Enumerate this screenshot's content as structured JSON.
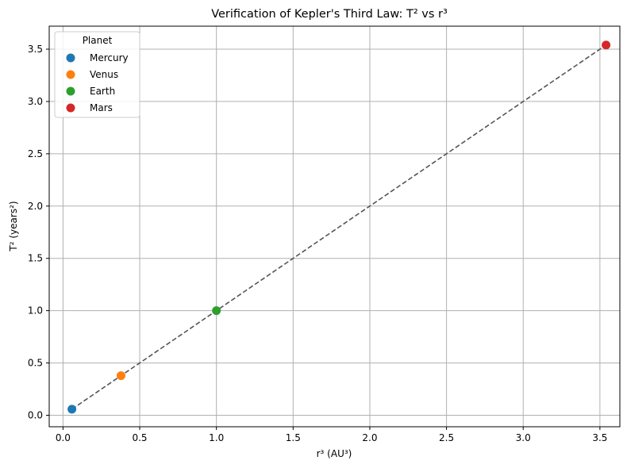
{
  "chart_data": {
    "type": "scatter",
    "title": "Verification of Kepler's Third Law: T² vs r³",
    "xlabel": "r³ (AU³)",
    "ylabel": "T² (years²)",
    "xlim": [
      -0.09,
      3.63
    ],
    "ylim": [
      -0.11,
      3.72
    ],
    "xticks": [
      0.0,
      0.5,
      1.0,
      1.5,
      2.0,
      2.5,
      3.0,
      3.5
    ],
    "xtick_labels": [
      "0.0",
      "0.5",
      "1.0",
      "1.5",
      "2.0",
      "2.5",
      "3.0",
      "3.5"
    ],
    "yticks": [
      0.0,
      0.5,
      1.0,
      1.5,
      2.0,
      2.5,
      3.0,
      3.5
    ],
    "ytick_labels": [
      "0.0",
      "0.5",
      "1.0",
      "1.5",
      "2.0",
      "2.5",
      "3.0",
      "3.5"
    ],
    "grid": true,
    "legend": {
      "title": "Planet",
      "placement": "top-left"
    },
    "series": [
      {
        "name": "Mercury",
        "color": "#1f77b4",
        "x": [
          0.058
        ],
        "y": [
          0.058
        ]
      },
      {
        "name": "Venus",
        "color": "#ff7f0e",
        "x": [
          0.378
        ],
        "y": [
          0.378
        ]
      },
      {
        "name": "Earth",
        "color": "#2ca02c",
        "x": [
          1.0
        ],
        "y": [
          1.0
        ]
      },
      {
        "name": "Mars",
        "color": "#d62728",
        "x": [
          3.54
        ],
        "y": [
          3.54
        ]
      }
    ],
    "fit_line": {
      "style": "dashed",
      "color": "#555555",
      "x": [
        0.058,
        3.54
      ],
      "y": [
        0.058,
        3.54
      ]
    }
  }
}
